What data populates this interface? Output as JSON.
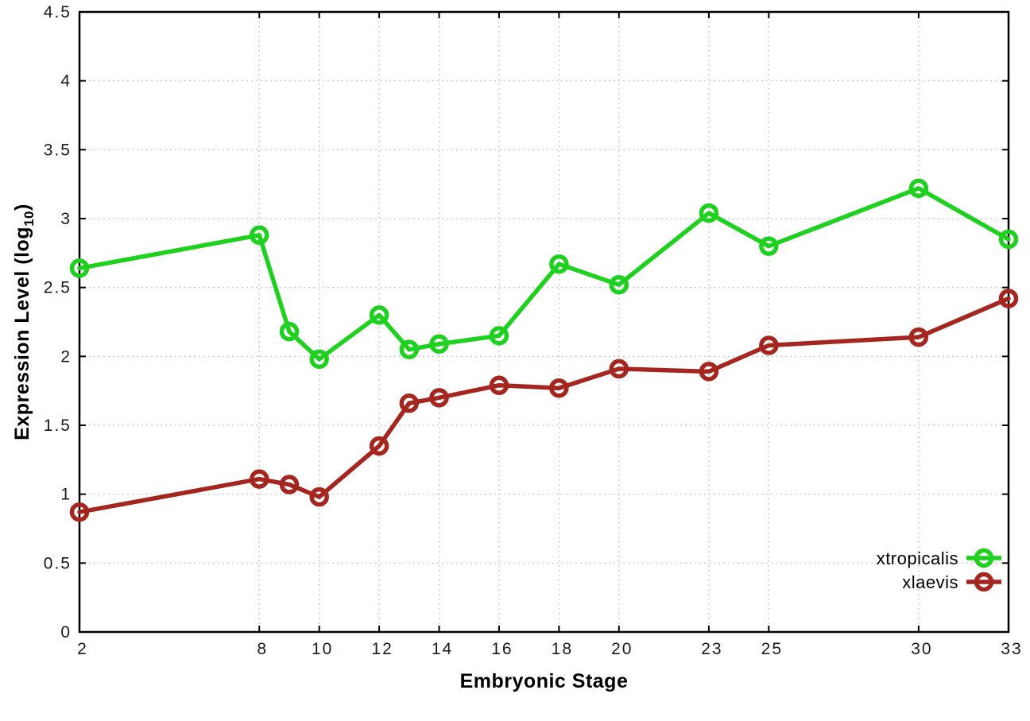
{
  "chart_data": {
    "type": "line",
    "title": "",
    "xlabel": "Embryonic Stage",
    "ylabel": {
      "pre": "Expression Level (log",
      "sub": "10",
      "post": ")"
    },
    "xlim": [
      2,
      33
    ],
    "ylim": [
      0,
      4.5
    ],
    "x_ticks": [
      2,
      8,
      10,
      12,
      14,
      16,
      18,
      20,
      23,
      25,
      30,
      33
    ],
    "y_ticks": [
      0,
      0.5,
      1,
      1.5,
      2,
      2.5,
      3,
      3.5,
      4,
      4.5
    ],
    "grid": true,
    "legend_position": "bottom-right",
    "x": [
      2,
      8,
      9,
      10,
      12,
      13,
      14,
      16,
      18,
      20,
      23,
      25,
      30,
      33
    ],
    "series": [
      {
        "name": "xtropicalis",
        "color": "#1fd11f",
        "values": [
          2.64,
          2.88,
          2.18,
          1.98,
          2.3,
          2.05,
          2.09,
          2.15,
          2.67,
          2.52,
          3.04,
          2.8,
          3.22,
          2.85
        ]
      },
      {
        "name": "xlaevis",
        "color": "#a5261f",
        "values": [
          0.87,
          1.11,
          1.07,
          0.98,
          1.35,
          1.66,
          1.7,
          1.79,
          1.77,
          1.91,
          1.89,
          2.08,
          2.14,
          2.42
        ]
      }
    ],
    "colors": {
      "grid": "#c4c4c4",
      "axis": "#000000",
      "tick_label": "#1a1a1a"
    }
  }
}
